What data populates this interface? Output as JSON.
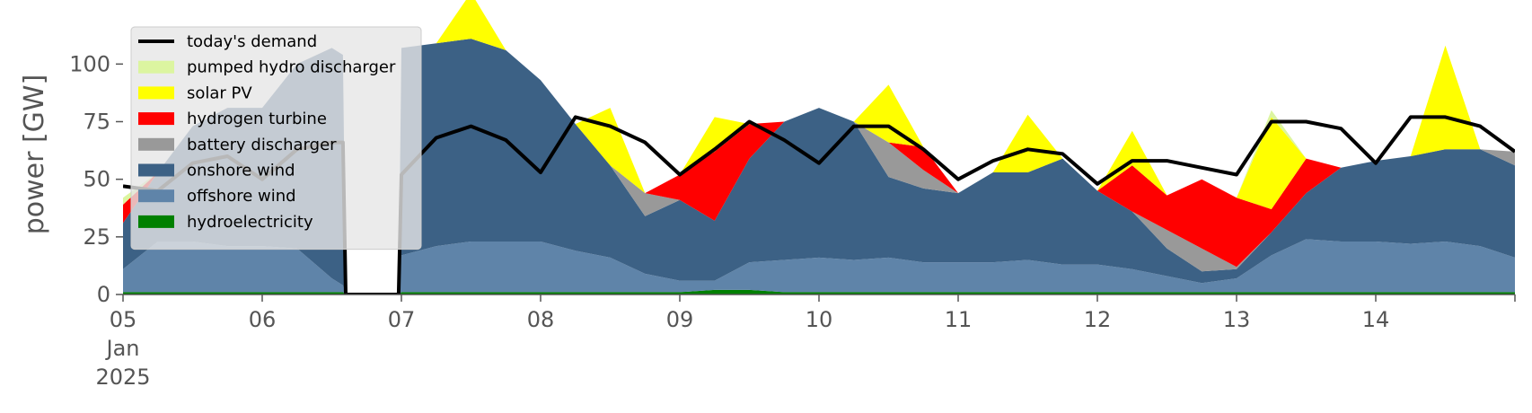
{
  "chart_data": {
    "type": "area",
    "ylabel": "power [GW]",
    "ylim": [
      0,
      120
    ],
    "yticks": [
      0,
      25,
      50,
      75,
      100
    ],
    "xlim": [
      0,
      10
    ],
    "xticks": [
      {
        "x": 0,
        "lines": [
          "05",
          "Jan",
          "2025"
        ]
      },
      {
        "x": 1,
        "lines": [
          "06"
        ]
      },
      {
        "x": 2,
        "lines": [
          "07"
        ]
      },
      {
        "x": 3,
        "lines": [
          "08"
        ]
      },
      {
        "x": 4,
        "lines": [
          "09"
        ]
      },
      {
        "x": 5,
        "lines": [
          "10"
        ]
      },
      {
        "x": 6,
        "lines": [
          "11"
        ]
      },
      {
        "x": 7,
        "lines": [
          "12"
        ]
      },
      {
        "x": 8,
        "lines": [
          "13"
        ]
      },
      {
        "x": 9,
        "lines": [
          "14"
        ]
      }
    ],
    "legend_position": "upper-left",
    "x": [
      0,
      0.25,
      0.5,
      0.75,
      1,
      1.25,
      1.5,
      1.58,
      1.6,
      1.98,
      2,
      2.25,
      2.5,
      2.75,
      3,
      3.25,
      3.5,
      3.75,
      4,
      4.25,
      4.5,
      4.75,
      5,
      5.25,
      5.5,
      5.75,
      6,
      6.25,
      6.5,
      6.75,
      7,
      7.25,
      7.5,
      7.75,
      8,
      8.25,
      8.5,
      8.75,
      9,
      9.25,
      9.5,
      9.75,
      10
    ],
    "series": [
      {
        "name": "hydroelectricity",
        "color": "#008000",
        "values": [
          1,
          1,
          1,
          1,
          1,
          1,
          1,
          1,
          0,
          0,
          1,
          1,
          1,
          1,
          1,
          1,
          1,
          1,
          1,
          2,
          2,
          1,
          1,
          1,
          1,
          1,
          1,
          1,
          1,
          1,
          1,
          1,
          1,
          1,
          1,
          1,
          1,
          1,
          1,
          1,
          1,
          1,
          1
        ]
      },
      {
        "name": "offshore wind",
        "color": "#5f84a9",
        "values": [
          10,
          22,
          22,
          20,
          20,
          19,
          6,
          3,
          0,
          0,
          16,
          20,
          22,
          22,
          22,
          18,
          15,
          8,
          5,
          4,
          12,
          14,
          15,
          14,
          15,
          13,
          13,
          13,
          14,
          12,
          12,
          10,
          7,
          4,
          6,
          16,
          23,
          22,
          22,
          21,
          22,
          20,
          15
        ]
      },
      {
        "name": "onshore wind",
        "color": "#3c6185",
        "values": [
          20,
          30,
          50,
          60,
          60,
          80,
          100,
          100,
          0,
          0,
          90,
          88,
          88,
          83,
          70,
          55,
          40,
          25,
          35,
          26,
          45,
          60,
          65,
          60,
          35,
          32,
          30,
          39,
          38,
          46,
          32,
          25,
          12,
          5,
          4,
          10,
          20,
          32,
          35,
          38,
          40,
          42,
          40
        ]
      },
      {
        "name": "battery discharger",
        "color": "#999999",
        "values": [
          0,
          0,
          0,
          0,
          0,
          0,
          0,
          0,
          0,
          0,
          0,
          0,
          0,
          0,
          0,
          0,
          0,
          10,
          0,
          0,
          0,
          0,
          0,
          0,
          15,
          8,
          0,
          0,
          0,
          0,
          0,
          0,
          8,
          10,
          1,
          0,
          0,
          0,
          0,
          0,
          0,
          0,
          6
        ]
      },
      {
        "name": "hydrogen turbine",
        "color": "#ff0000",
        "values": [
          8,
          0,
          0,
          0,
          0,
          0,
          0,
          0,
          0,
          0,
          0,
          0,
          0,
          0,
          0,
          0,
          0,
          0,
          11,
          30,
          15,
          0,
          0,
          0,
          0,
          10,
          0,
          0,
          0,
          0,
          0,
          20,
          15,
          30,
          30,
          10,
          15,
          0,
          0,
          0,
          0,
          0,
          0
        ]
      },
      {
        "name": "solar PV",
        "color": "#ffff00",
        "values": [
          0,
          0,
          0,
          0,
          0,
          0,
          0,
          0,
          0,
          0,
          0,
          0,
          20,
          0,
          0,
          0,
          25,
          0,
          0,
          15,
          0,
          0,
          0,
          0,
          25,
          0,
          0,
          0,
          25,
          0,
          0,
          15,
          0,
          0,
          0,
          40,
          0,
          0,
          0,
          0,
          45,
          0,
          0
        ]
      },
      {
        "name": "pumped hydro discharger",
        "color": "#dcf5a0",
        "values": [
          3,
          0,
          0,
          0,
          0,
          0,
          0,
          0,
          0,
          0,
          0,
          0,
          0,
          0,
          0,
          0,
          0,
          0,
          0,
          0,
          0,
          0,
          0,
          0,
          0,
          0,
          0,
          0,
          0,
          0,
          0,
          0,
          0,
          0,
          0,
          3,
          0,
          0,
          0,
          0,
          0,
          0,
          0
        ]
      }
    ],
    "line": {
      "name": "today's demand",
      "color": "#000000",
      "values": [
        47,
        45,
        57,
        60,
        50,
        63,
        66,
        66,
        0,
        0,
        52,
        68,
        73,
        67,
        53,
        77,
        73,
        66,
        52,
        63,
        75,
        67,
        57,
        73,
        73,
        63,
        50,
        58,
        63,
        61,
        48,
        58,
        58,
        55,
        52,
        75,
        75,
        72,
        57,
        77,
        77,
        73,
        62
      ]
    }
  }
}
